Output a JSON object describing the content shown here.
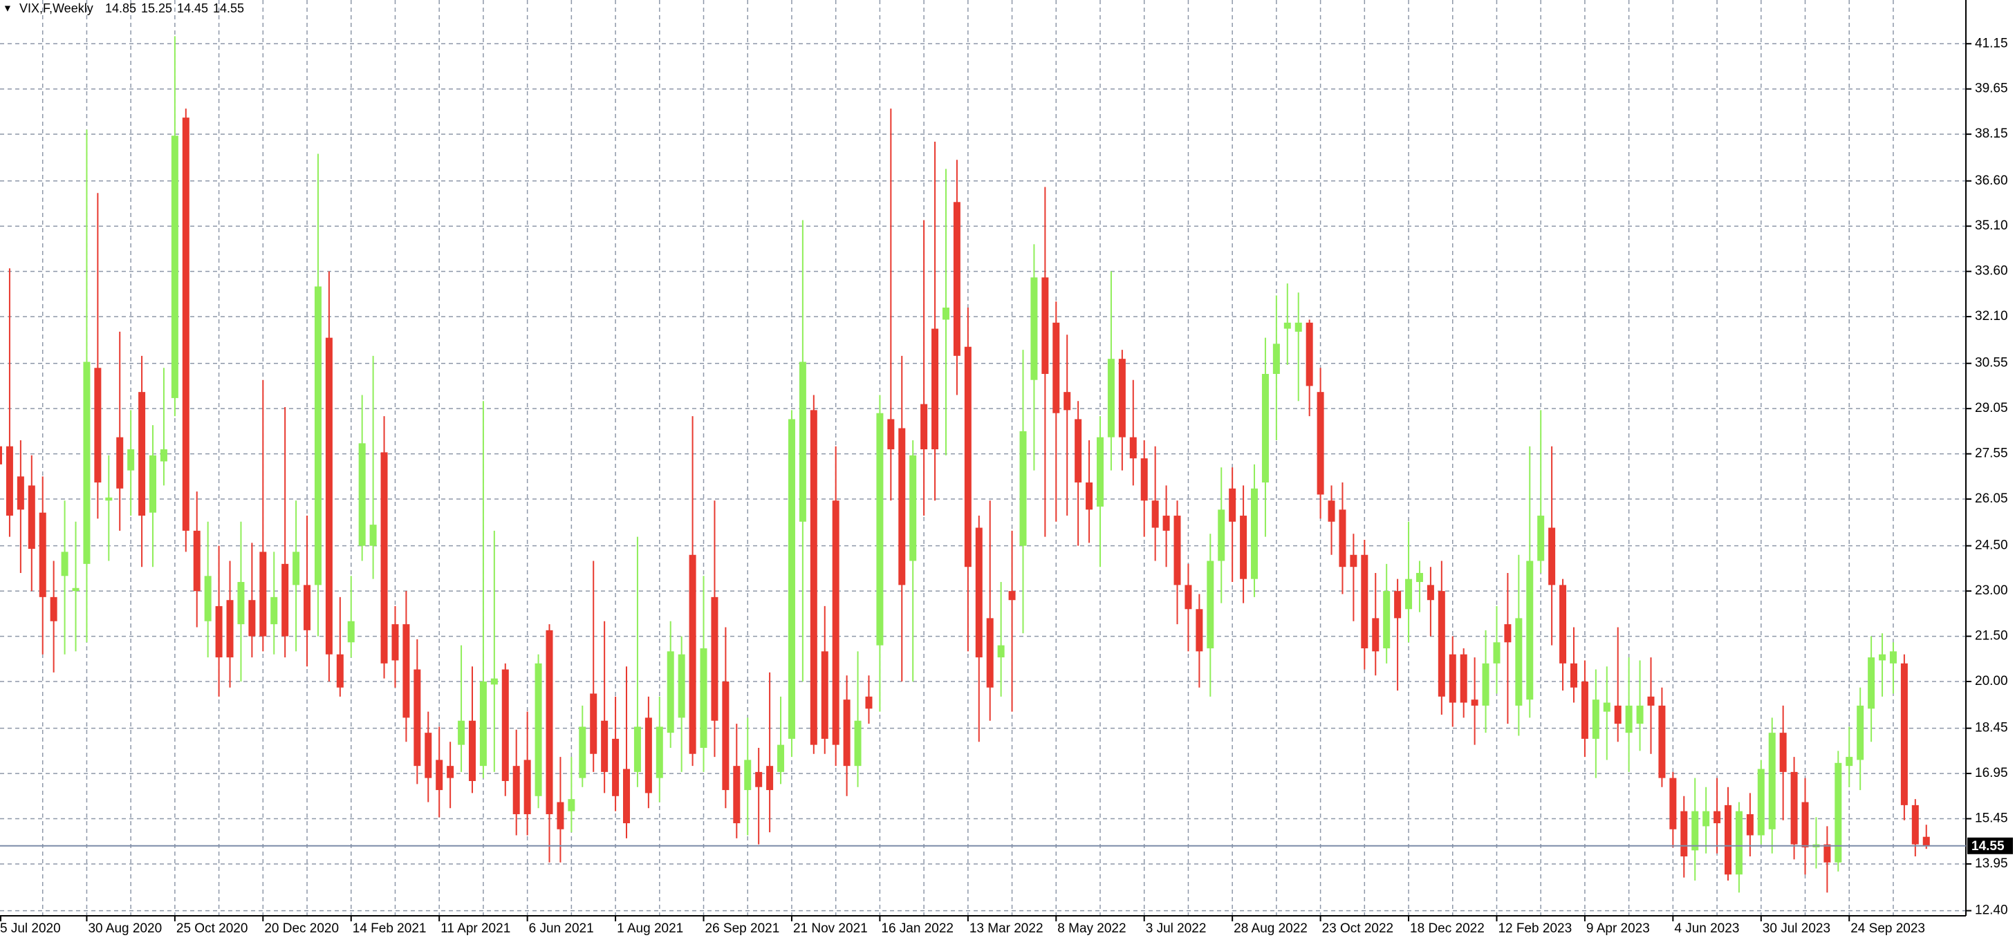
{
  "chart_data": {
    "type": "candlestick",
    "title": "VIX,F,Weekly",
    "categories": [
      "5 Jul 2020",
      null,
      null,
      null,
      null,
      null,
      null,
      null,
      "30 Aug 2020",
      null,
      null,
      null,
      null,
      null,
      null,
      null,
      "25 Oct 2020",
      null,
      null,
      null,
      null,
      null,
      null,
      null,
      "20 Dec 2020",
      null,
      null,
      null,
      null,
      null,
      null,
      null,
      "14 Feb 2021",
      null,
      null,
      null,
      null,
      null,
      null,
      null,
      "11 Apr 2021",
      null,
      null,
      null,
      null,
      null,
      null,
      null,
      "6 Jun 2021",
      null,
      null,
      null,
      null,
      null,
      null,
      null,
      "1 Aug 2021",
      null,
      null,
      null,
      null,
      null,
      null,
      null,
      "26 Sep 2021",
      null,
      null,
      null,
      null,
      null,
      null,
      null,
      "21 Nov 2021",
      null,
      null,
      null,
      null,
      null,
      null,
      null,
      "16 Jan 2022",
      null,
      null,
      null,
      null,
      null,
      null,
      null,
      "13 Mar 2022",
      null,
      null,
      null,
      null,
      null,
      null,
      null,
      "8 May 2022",
      null,
      null,
      null,
      null,
      null,
      null,
      null,
      "3 Jul 2022",
      null,
      null,
      null,
      null,
      null,
      null,
      null,
      "28 Aug 2022",
      null,
      null,
      null,
      null,
      null,
      null,
      null,
      "23 Oct 2022",
      null,
      null,
      null,
      null,
      null,
      null,
      null,
      "18 Dec 2022",
      null,
      null,
      null,
      null,
      null,
      null,
      null,
      "12 Feb 2023",
      null,
      null,
      null,
      null,
      null,
      null,
      null,
      "9 Apr 2023",
      null,
      null,
      null,
      null,
      null,
      null,
      null,
      "4 Jun 2023",
      null,
      null,
      null,
      null,
      null,
      null,
      null,
      "30 Jul 2023",
      null,
      null,
      null,
      null,
      null,
      null,
      null,
      "24 Sep 2023",
      null,
      null,
      null,
      null,
      null,
      null,
      null
    ],
    "open": [
      27.8,
      27.8,
      26.8,
      26.5,
      25.6,
      22.8,
      23.5,
      23.0,
      23.9,
      30.4,
      26.0,
      28.1,
      27.0,
      29.6,
      25.6,
      27.3,
      29.4,
      38.7,
      25.0,
      22.0,
      22.5,
      22.7,
      21.9,
      22.7,
      24.3,
      21.9,
      23.9,
      23.2,
      23.2,
      23.2,
      31.4,
      20.9,
      21.3,
      24.5,
      24.5,
      27.6,
      21.9,
      21.9,
      20.4,
      18.3,
      17.4,
      17.2,
      17.9,
      18.7,
      17.2,
      19.9,
      20.4,
      17.2,
      17.4,
      16.2,
      21.7,
      16.0,
      15.7,
      16.8,
      19.6,
      18.7,
      18.1,
      17.1,
      17.0,
      18.8,
      16.8,
      18.3,
      18.8,
      24.2,
      17.8,
      22.8,
      20.0,
      17.2,
      16.4,
      17.0,
      17.2,
      17.0,
      18.1,
      25.3,
      29.0,
      21.0,
      26.0,
      19.4,
      17.2,
      19.5,
      21.2,
      28.7,
      28.4,
      24.0,
      29.2,
      31.7,
      32.0,
      35.9,
      31.1,
      25.1,
      22.1,
      20.8,
      23.0,
      24.5,
      30.0,
      33.4,
      31.9,
      29.6,
      28.7,
      26.6,
      25.8,
      28.1,
      30.7,
      28.1,
      27.4,
      26.0,
      25.5,
      25.5,
      23.2,
      22.4,
      21.1,
      24.0,
      26.4,
      25.5,
      23.4,
      26.6,
      30.2,
      31.7,
      31.6,
      31.9,
      29.6,
      26.0,
      25.7,
      24.2,
      24.2,
      22.1,
      21.1,
      23.0,
      22.4,
      23.3,
      23.2,
      23.0,
      20.9,
      20.9,
      19.4,
      19.2,
      20.6,
      21.9,
      19.2,
      19.4,
      24.0,
      25.1,
      23.2,
      20.6,
      20.0,
      18.1,
      19.0,
      19.2,
      18.3,
      18.6,
      19.5,
      19.2,
      16.8,
      15.7,
      14.4,
      15.2,
      15.7,
      15.9,
      13.6,
      15.6,
      14.9,
      15.1,
      18.3,
      17.0,
      16.0,
      14.5,
      14.6,
      14.0,
      17.2,
      17.4,
      19.1,
      20.7,
      20.6,
      20.6,
      15.9,
      14.85
    ],
    "high": [
      28.5,
      33.7,
      28.0,
      27.5,
      26.8,
      24.0,
      26.0,
      25.3,
      38.3,
      36.2,
      27.5,
      31.6,
      29.0,
      30.8,
      28.5,
      30.4,
      41.4,
      39.0,
      26.3,
      25.3,
      24.5,
      24.0,
      25.3,
      24.6,
      30.0,
      24.3,
      29.1,
      26.0,
      25.5,
      37.5,
      33.6,
      22.8,
      23.5,
      29.5,
      30.8,
      28.8,
      22.5,
      23.0,
      21.4,
      19.0,
      18.5,
      18.0,
      21.2,
      20.5,
      29.3,
      25.0,
      20.6,
      18.4,
      19.0,
      20.9,
      21.9,
      17.5,
      17.5,
      19.2,
      24.0,
      22.0,
      19.5,
      20.5,
      24.8,
      19.5,
      19.5,
      22.0,
      21.5,
      28.8,
      23.5,
      26.0,
      21.8,
      18.6,
      18.8,
      17.8,
      20.3,
      19.5,
      29.0,
      35.3,
      29.5,
      22.5,
      27.8,
      20.2,
      21.0,
      20.2,
      29.5,
      39.0,
      30.8,
      28.0,
      35.3,
      37.9,
      37.0,
      37.3,
      32.4,
      25.5,
      26.0,
      23.3,
      25.0,
      31.0,
      34.5,
      36.4,
      32.6,
      31.5,
      29.3,
      28.0,
      28.8,
      33.6,
      31.0,
      30.0,
      28.0,
      27.8,
      26.5,
      26.0,
      23.9,
      22.9,
      24.9,
      27.1,
      27.1,
      26.5,
      27.2,
      31.4,
      32.8,
      33.2,
      32.9,
      32.0,
      30.4,
      26.5,
      26.6,
      24.9,
      24.7,
      23.6,
      23.9,
      23.4,
      25.3,
      24.0,
      23.8,
      24.0,
      21.5,
      21.1,
      20.8,
      21.7,
      22.5,
      23.6,
      24.2,
      27.8,
      29.0,
      27.8,
      23.4,
      21.8,
      20.7,
      20.4,
      20.5,
      21.8,
      20.8,
      20.7,
      20.8,
      19.8,
      17.0,
      16.2,
      16.8,
      16.5,
      16.8,
      16.5,
      16.0,
      16.3,
      17.4,
      18.8,
      19.2,
      17.5,
      16.8,
      15.5,
      15.2,
      17.7,
      18.5,
      19.8,
      21.5,
      21.6,
      21.3,
      20.9,
      16.1,
      15.25
    ],
    "low": [
      26.0,
      24.8,
      23.6,
      23.0,
      20.9,
      20.3,
      20.9,
      21.0,
      21.3,
      25.4,
      24.0,
      25.0,
      25.5,
      23.8,
      23.8,
      26.5,
      28.8,
      24.3,
      21.8,
      20.8,
      19.5,
      19.8,
      20.0,
      20.8,
      21.0,
      20.9,
      20.8,
      21.0,
      20.5,
      21.5,
      20.0,
      19.5,
      20.8,
      24.0,
      23.4,
      20.1,
      19.8,
      18.0,
      16.6,
      16.0,
      15.5,
      15.8,
      17.0,
      16.3,
      16.8,
      17.0,
      16.2,
      14.9,
      14.9,
      15.8,
      14.0,
      14.0,
      15.0,
      16.5,
      17.0,
      16.3,
      15.7,
      14.8,
      16.5,
      15.8,
      16.0,
      17.8,
      17.0,
      17.2,
      17.0,
      17.5,
      15.8,
      14.8,
      14.9,
      14.6,
      15.0,
      16.6,
      17.5,
      20.0,
      17.6,
      17.6,
      17.2,
      16.2,
      16.5,
      18.6,
      19.0,
      26.0,
      20.0,
      20.0,
      25.5,
      26.0,
      27.5,
      29.5,
      21.0,
      18.0,
      18.7,
      19.5,
      19.0,
      21.6,
      27.0,
      24.8,
      25.3,
      25.5,
      24.5,
      24.6,
      23.8,
      27.0,
      27.0,
      26.5,
      24.8,
      24.0,
      23.8,
      21.9,
      21.0,
      19.8,
      19.5,
      22.6,
      23.3,
      22.6,
      22.8,
      24.8,
      28.0,
      30.5,
      29.3,
      28.8,
      25.4,
      24.2,
      22.9,
      22.0,
      20.4,
      20.2,
      20.6,
      19.7,
      21.3,
      22.3,
      21.5,
      18.9,
      18.5,
      18.8,
      17.9,
      18.3,
      19.6,
      18.6,
      18.2,
      18.8,
      23.6,
      21.2,
      19.7,
      19.3,
      17.5,
      16.8,
      17.4,
      18.0,
      17.0,
      17.7,
      17.6,
      16.5,
      14.5,
      13.5,
      13.4,
      14.3,
      14.3,
      13.4,
      13.0,
      14.2,
      14.6,
      14.3,
      15.4,
      14.1,
      13.6,
      13.8,
      13.0,
      13.7,
      16.5,
      16.4,
      18.0,
      19.5,
      19.6,
      15.4,
      14.2,
      14.45
    ],
    "close": [
      27.2,
      25.5,
      25.7,
      24.4,
      22.8,
      22.0,
      24.3,
      23.1,
      30.6,
      26.6,
      26.1,
      26.4,
      27.7,
      25.5,
      27.5,
      27.7,
      38.1,
      25.0,
      23.0,
      23.5,
      20.8,
      20.8,
      23.3,
      21.5,
      21.5,
      22.8,
      21.5,
      24.3,
      21.7,
      33.1,
      20.9,
      19.8,
      22.0,
      27.9,
      25.2,
      20.6,
      20.7,
      18.8,
      17.2,
      16.8,
      16.4,
      16.8,
      18.7,
      16.7,
      20.0,
      20.1,
      16.7,
      15.6,
      15.6,
      20.6,
      15.6,
      15.1,
      16.1,
      18.5,
      17.6,
      17.0,
      16.2,
      15.3,
      18.5,
      16.3,
      18.5,
      21.0,
      20.9,
      17.6,
      21.1,
      18.7,
      16.4,
      15.3,
      17.4,
      16.5,
      16.4,
      17.9,
      28.7,
      30.6,
      17.9,
      18.1,
      17.9,
      17.2,
      18.7,
      19.1,
      28.9,
      27.7,
      23.2,
      27.5,
      27.7,
      27.7,
      32.4,
      30.8,
      23.8,
      20.8,
      19.8,
      21.2,
      22.7,
      28.3,
      33.4,
      30.2,
      28.9,
      29.0,
      26.6,
      25.7,
      28.1,
      30.7,
      28.1,
      27.4,
      26.0,
      25.1,
      25.0,
      23.2,
      22.4,
      21.0,
      24.0,
      25.7,
      25.3,
      23.4,
      26.4,
      30.2,
      31.2,
      31.9,
      31.9,
      29.8,
      26.2,
      25.3,
      23.8,
      23.8,
      21.1,
      21.0,
      23.0,
      22.1,
      23.4,
      23.6,
      22.7,
      19.5,
      19.3,
      19.3,
      19.2,
      20.6,
      21.3,
      21.3,
      22.1,
      24.0,
      25.5,
      23.2,
      20.6,
      19.8,
      18.1,
      19.4,
      19.3,
      18.6,
      19.2,
      19.2,
      19.2,
      16.8,
      15.1,
      14.2,
      15.7,
      15.7,
      15.3,
      13.6,
      15.7,
      14.9,
      17.1,
      18.3,
      17.0,
      14.6,
      14.5,
      14.6,
      14.0,
      17.3,
      17.5,
      19.2,
      20.8,
      20.9,
      21.0,
      15.9,
      14.6,
      14.55
    ],
    "up_color": "#90ee5a",
    "down_color": "#e8392f",
    "ylim": [
      12.23,
      42.6
    ],
    "yticks": [
      41.15,
      39.65,
      38.15,
      {
        "value": 36.6,
        "label": "36.60"
      },
      {
        "value": 35.1,
        "label": "35.10"
      },
      {
        "value": 33.6,
        "label": "33.60"
      },
      {
        "value": 32.1,
        "label": "32.10"
      },
      30.55,
      29.05,
      27.55,
      26.05,
      {
        "value": 24.5,
        "label": "24.50"
      },
      {
        "value": 23.0,
        "label": "23.00"
      },
      {
        "value": 21.5,
        "label": "21.50"
      },
      {
        "value": 20.0,
        "label": "20.00"
      },
      18.45,
      16.95,
      15.45,
      13.95,
      {
        "value": 12.4,
        "label": "12.40"
      }
    ],
    "grid": true
  }
}
